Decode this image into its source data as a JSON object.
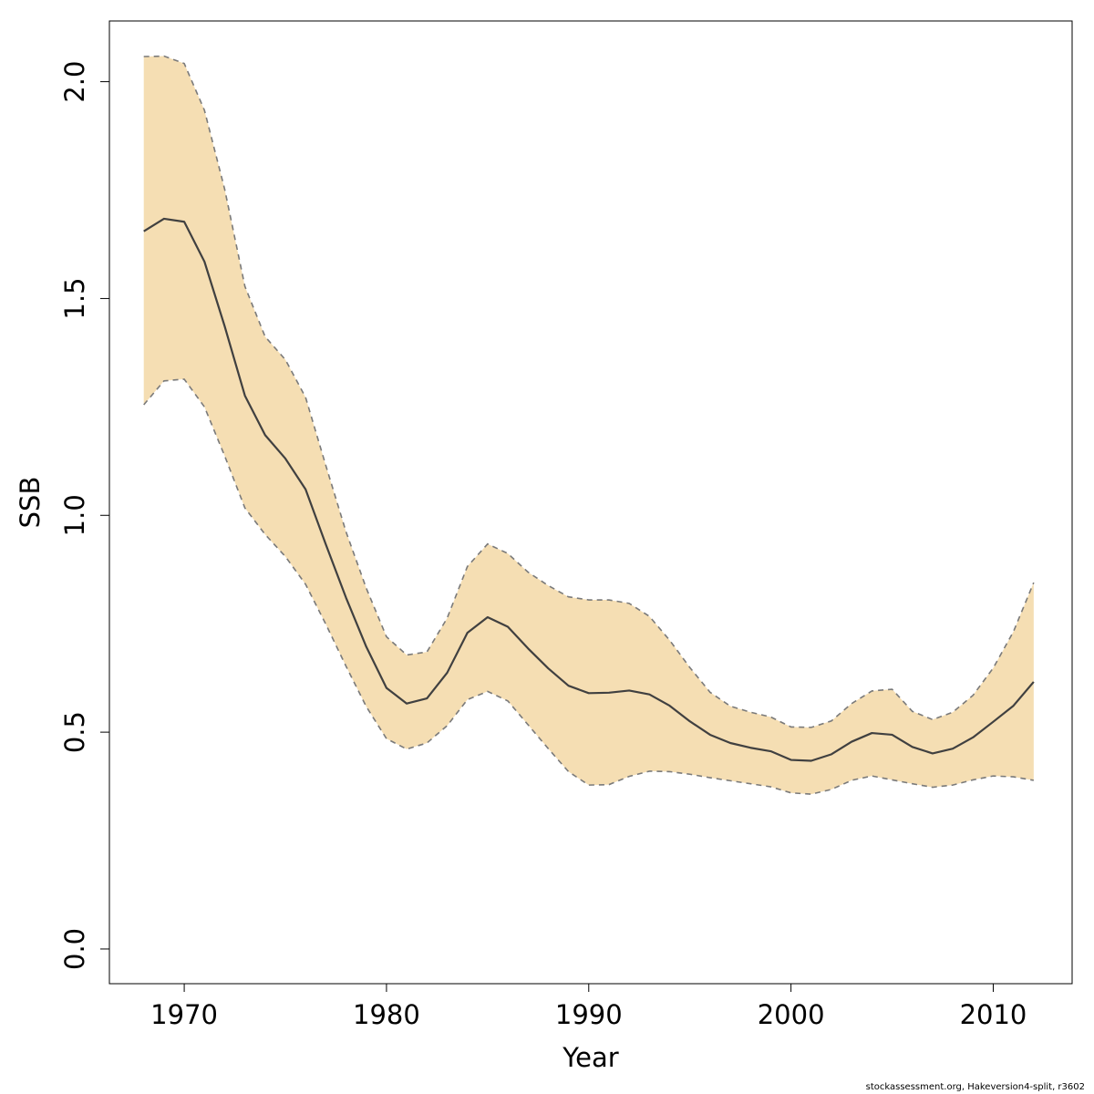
{
  "chart_data": {
    "type": "area",
    "xlabel": "Year",
    "ylabel": "SSB",
    "xlim": [
      1966.3,
      2013.9
    ],
    "ylim": [
      -0.08,
      2.14
    ],
    "x_ticks": [
      1970,
      1980,
      1990,
      2000,
      2010
    ],
    "y_ticks": [
      "0.0",
      "0.5",
      "1.0",
      "1.5",
      "2.0"
    ],
    "band_color": "#f5deb3",
    "line_color": "#404040",
    "years": [
      1968,
      1969,
      1970,
      1971,
      1972,
      1973,
      1974,
      1975,
      1976,
      1977,
      1978,
      1979,
      1980,
      1981,
      1982,
      1983,
      1984,
      1985,
      1986,
      1987,
      1988,
      1989,
      1990,
      1991,
      1992,
      1993,
      1994,
      1995,
      1996,
      1997,
      1998,
      1999,
      2000,
      2001,
      2002,
      2003,
      2004,
      2005,
      2006,
      2007,
      2008,
      2009,
      2010,
      2011,
      2012
    ],
    "median": [
      1.655,
      1.684,
      1.677,
      1.585,
      1.436,
      1.276,
      1.185,
      1.131,
      1.06,
      0.933,
      0.81,
      0.697,
      0.602,
      0.566,
      0.578,
      0.637,
      0.729,
      0.765,
      0.743,
      0.693,
      0.647,
      0.607,
      0.59,
      0.591,
      0.596,
      0.587,
      0.561,
      0.525,
      0.494,
      0.475,
      0.464,
      0.456,
      0.436,
      0.434,
      0.449,
      0.478,
      0.498,
      0.494,
      0.466,
      0.451,
      0.462,
      0.488,
      0.524,
      0.561,
      0.616
    ],
    "upper": [
      2.058,
      2.059,
      2.042,
      1.934,
      1.752,
      1.528,
      1.412,
      1.359,
      1.272,
      1.115,
      0.962,
      0.832,
      0.72,
      0.678,
      0.685,
      0.763,
      0.882,
      0.934,
      0.912,
      0.869,
      0.838,
      0.812,
      0.805,
      0.805,
      0.797,
      0.767,
      0.712,
      0.649,
      0.592,
      0.56,
      0.546,
      0.535,
      0.512,
      0.511,
      0.526,
      0.566,
      0.595,
      0.599,
      0.548,
      0.529,
      0.546,
      0.585,
      0.648,
      0.732,
      0.845
    ],
    "lower": [
      1.255,
      1.31,
      1.314,
      1.25,
      1.137,
      1.017,
      0.956,
      0.905,
      0.841,
      0.749,
      0.652,
      0.559,
      0.485,
      0.461,
      0.475,
      0.515,
      0.575,
      0.594,
      0.572,
      0.517,
      0.462,
      0.409,
      0.378,
      0.379,
      0.398,
      0.41,
      0.409,
      0.403,
      0.395,
      0.388,
      0.381,
      0.374,
      0.36,
      0.357,
      0.368,
      0.389,
      0.399,
      0.39,
      0.381,
      0.373,
      0.378,
      0.39,
      0.399,
      0.397,
      0.389
    ]
  },
  "footer_text": "stockassessment.org, Hakeversion4-split, r3602"
}
